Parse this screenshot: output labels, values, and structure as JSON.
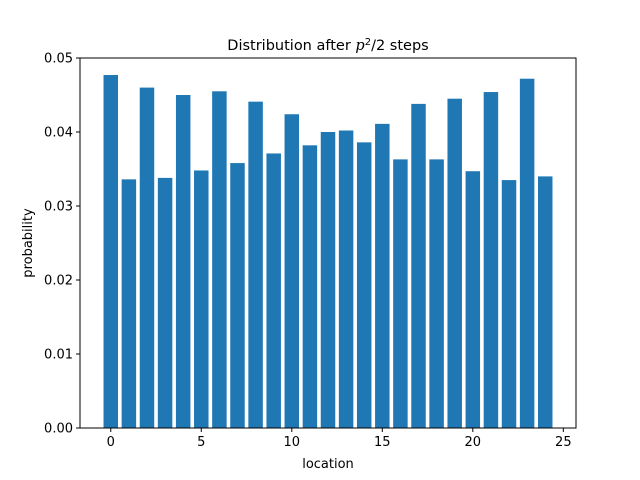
{
  "chart_data": {
    "type": "bar",
    "title_prefix": "Distribution after ",
    "title_var": "p",
    "title_sup": "2",
    "title_suffix": "/2 steps",
    "xlabel": "location",
    "ylabel": "probability",
    "x": [
      0,
      1,
      2,
      3,
      4,
      5,
      6,
      7,
      8,
      9,
      10,
      11,
      12,
      13,
      14,
      15,
      16,
      17,
      18,
      19,
      20,
      21,
      22,
      23,
      24
    ],
    "values": [
      0.0477,
      0.0336,
      0.046,
      0.0338,
      0.045,
      0.0348,
      0.0455,
      0.0358,
      0.0441,
      0.0371,
      0.0424,
      0.0382,
      0.04,
      0.0402,
      0.0386,
      0.0411,
      0.0363,
      0.0438,
      0.0363,
      0.0445,
      0.0347,
      0.0454,
      0.0335,
      0.0472,
      0.034
    ],
    "xlim": [
      -1.7,
      25.7
    ],
    "ylim": [
      0,
      0.05
    ],
    "xticks": [
      0,
      5,
      10,
      15,
      20,
      25
    ],
    "xtick_labels": [
      "0",
      "5",
      "10",
      "15",
      "20",
      "25"
    ],
    "yticks": [
      0,
      0.01,
      0.02,
      0.03,
      0.04,
      0.05
    ],
    "ytick_labels": [
      "0.00",
      "0.01",
      "0.02",
      "0.03",
      "0.04",
      "0.05"
    ],
    "bar_color": "#1f77b4",
    "grid": false,
    "legend": "none"
  }
}
